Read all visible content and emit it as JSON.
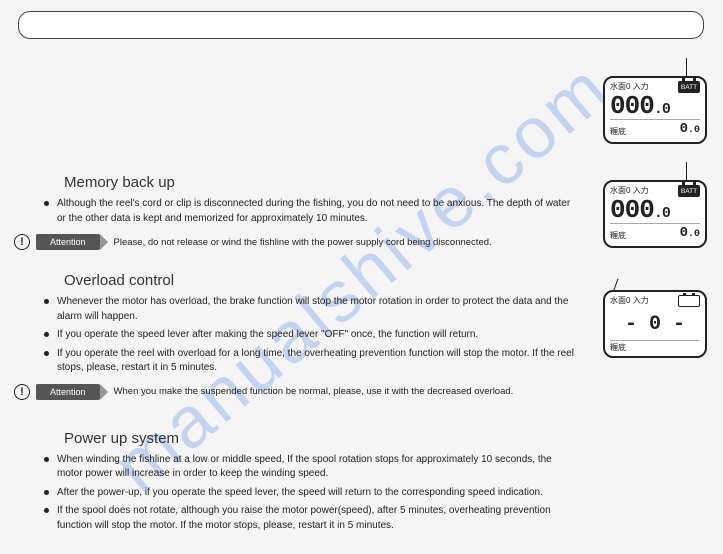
{
  "watermark": "manualshive.com",
  "sections": {
    "memory": {
      "title": "Memory back up",
      "bullets": [
        "Although the reel's cord or clip is disconnected during the fishing, you do not need to be anxious. The depth of water or the other data is kept and memorized for approximately 10 minutes."
      ],
      "attention": "Please, do not release or wind the fishline with the power supply cord being disconnected."
    },
    "overload": {
      "title": "Overload control",
      "bullets": [
        "Whenever the motor has overload, the brake function will stop the motor rotation in order to protect the data and the alarm will happen.",
        "If you operate the speed lever after making the speed lever \"OFF\" once, the function will return.",
        "If you operate the reel with overload for a long time, the overheating prevention function will stop the motor. If the reel stops, please, restart it in 5 minutes."
      ],
      "attention": "When you make the suspended function be normal, please, use it with the decreased overload."
    },
    "powerup": {
      "title": "Power up system",
      "bullets": [
        "When winding the fishline at a low or middle speed, If the spool rotation stops for approximately 10 seconds, the motor power will increase in order to keep the winding speed.",
        "After the power-up, if you operate the speed lever, the speed will return to the corresponding speed indication.",
        "If the spool does not rotate, although you raise the motor power(speed), after 5 minutes, overheating prevention function will stop the motor. If the motor stops, please, restart it in 5 minutes."
      ]
    }
  },
  "attention_label": "Attention",
  "display": {
    "top_left": "水面0",
    "top_right": "入力",
    "batt": "BATT",
    "main": "000",
    "main_dec": ".0",
    "bottom_label": "糎底",
    "bottom_val": "0",
    "bottom_dec": ".0",
    "overload_center": "- 0 -"
  }
}
